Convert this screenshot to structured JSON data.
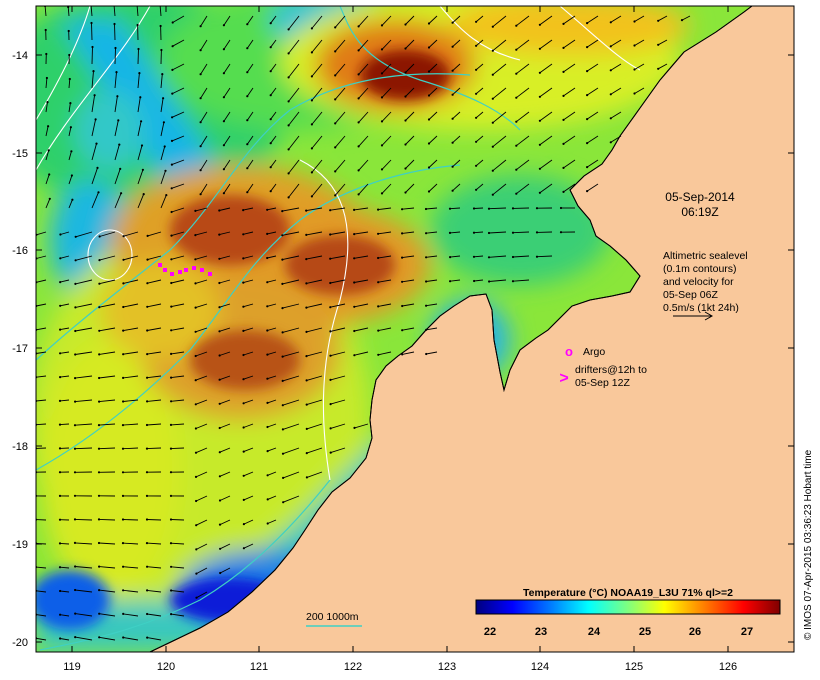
{
  "map": {
    "colors": {
      "land": "#f9c89b",
      "frame": "#000000",
      "isobath": "#3fd0c4",
      "sealevel": "#ffffff",
      "argo": "#ff00ff",
      "drifter": "#ff00ff",
      "arrow": "#000000"
    },
    "lon_ticks": [
      "119",
      "120",
      "121",
      "122",
      "123",
      "124",
      "125",
      "126"
    ],
    "lat_ticks": [
      "-14",
      "-15",
      "-16",
      "-17",
      "-18",
      "-19",
      "-20"
    ],
    "timestamp_line1": "05-Sep-2014",
    "timestamp_line2": "06:19Z",
    "altimetry_note": [
      "Altimetric sealevel",
      "(0.1m contours)",
      "and velocity for",
      "05-Sep 06Z",
      "0.5m/s (1kt 24h)"
    ],
    "argo_symbol": "o",
    "argo_label": "Argo",
    "drifter_symbol": ">",
    "drifter_label_line1": "drifters@12h to",
    "drifter_label_line2": "05-Sep 12Z",
    "isobath_label": "200  1000m",
    "colorbar": {
      "title": "Temperature (°C) NOAA19_L3U 71% ql>=2",
      "ticks": [
        "22",
        "23",
        "24",
        "25",
        "26",
        "27"
      ],
      "stops": [
        "#00007f",
        "#0000ff",
        "#007fff",
        "#00ffff",
        "#7fff7f",
        "#ffff00",
        "#ff7f00",
        "#ff0000",
        "#7f0000"
      ]
    },
    "credit": "© IMOS 07-Apr-2015 03:36:23 Hobart time"
  }
}
